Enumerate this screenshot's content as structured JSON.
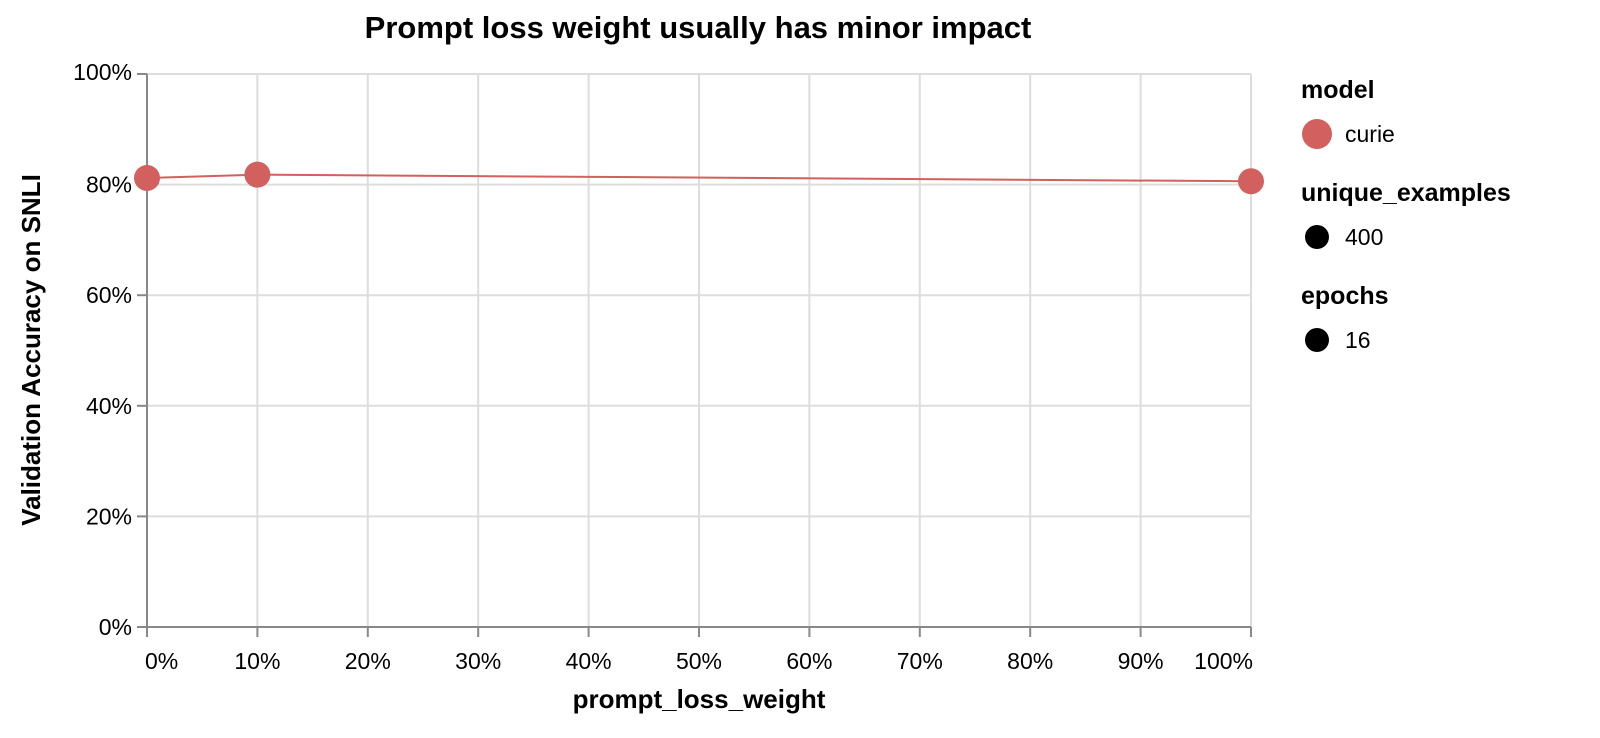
{
  "chart_data": {
    "type": "line",
    "title": "Prompt loss weight usually has minor impact",
    "xlabel": "prompt_loss_weight",
    "ylabel": "Validation Accuracy on SNLI",
    "xlim": [
      0,
      1
    ],
    "ylim": [
      0,
      1
    ],
    "x_ticks": [
      "0%",
      "10%",
      "20%",
      "30%",
      "40%",
      "50%",
      "60%",
      "70%",
      "80%",
      "90%",
      "100%"
    ],
    "y_ticks": [
      "0%",
      "20%",
      "40%",
      "60%",
      "80%",
      "100%"
    ],
    "grid": true,
    "legend_position": "right",
    "series": [
      {
        "name": "curie",
        "color": "#d1605e",
        "x": [
          0.0,
          0.1,
          1.0
        ],
        "y": [
          0.812,
          0.818,
          0.806
        ]
      }
    ],
    "legend": [
      {
        "title": "model",
        "label": "curie",
        "color": "#d1605e",
        "symbol": "large-circle"
      },
      {
        "title": "unique_examples",
        "label": "400",
        "color": "#000000",
        "symbol": "circle"
      },
      {
        "title": "epochs",
        "label": "16",
        "color": "#000000",
        "symbol": "circle"
      }
    ]
  }
}
